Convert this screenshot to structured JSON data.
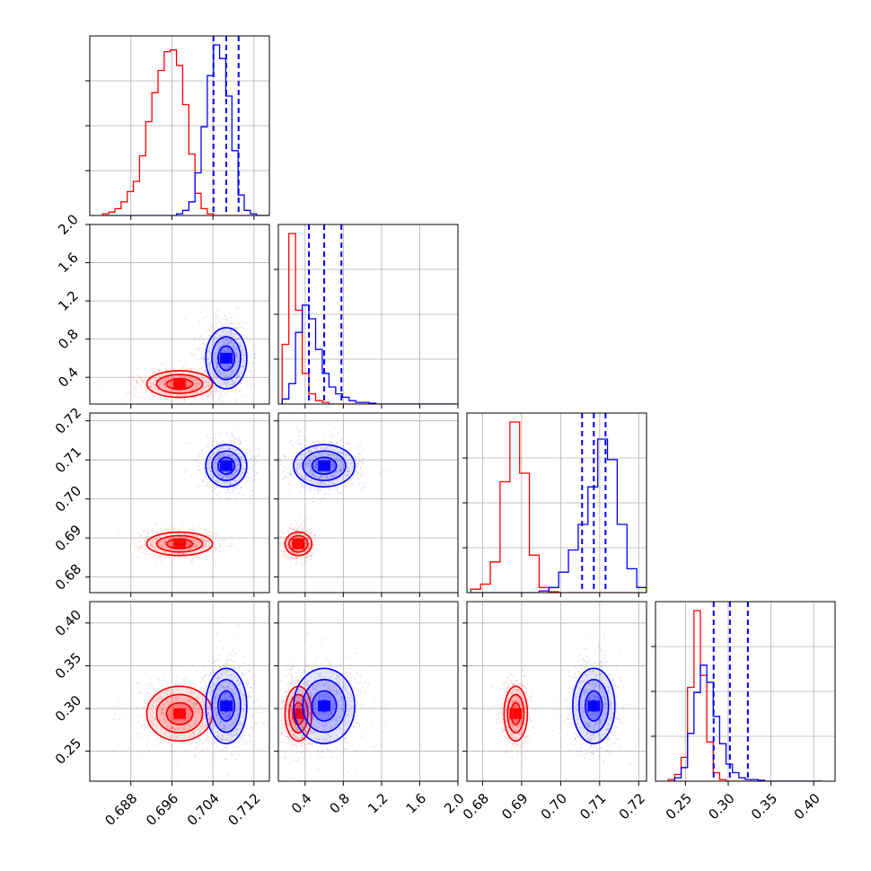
{
  "chart_data": {
    "type": "scatter",
    "layout": "corner",
    "grid": true,
    "parameters": [
      {
        "range": [
          0.68,
          0.715
        ],
        "ticks": [
          0.688,
          0.696,
          0.704,
          0.712
        ],
        "tick_labels": [
          "0.688",
          "0.696",
          "0.704",
          "0.712"
        ]
      },
      {
        "range": [
          0.12,
          2.0
        ],
        "ticks": [
          0.4,
          0.8,
          1.2,
          1.6,
          2.0
        ],
        "tick_labels": [
          "0.4",
          "0.8",
          "1.2",
          "1.6",
          "2.0"
        ]
      },
      {
        "range": [
          0.676,
          0.722
        ],
        "ticks": [
          0.68,
          0.69,
          0.7,
          0.71,
          0.72
        ],
        "tick_labels": [
          "0.68",
          "0.69",
          "0.70",
          "0.71",
          "0.72"
        ]
      },
      {
        "range": [
          0.215,
          0.425
        ],
        "ticks": [
          0.25,
          0.3,
          0.35,
          0.4
        ],
        "tick_labels": [
          "0.25",
          "0.30",
          "0.35",
          "0.40"
        ]
      }
    ],
    "series": [
      {
        "color": "#ff0000",
        "means": [
          0.6975,
          0.33,
          0.6885,
          0.294
        ],
        "sigmas": [
          0.0032,
          0.07,
          0.0015,
          0.016
        ],
        "histograms": [
          {
            "bin_start": 0.6825,
            "bin_width": 0.0012,
            "counts": [
              1,
              2,
              4,
              8,
              14,
              20,
              35,
              55,
              72,
              85,
              96,
              97,
              88,
              65,
              36,
              13,
              4,
              1,
              0,
              0,
              0,
              0,
              0,
              0,
              0,
              0,
              0,
              0
            ]
          },
          {
            "bin_start": 0.16,
            "bin_width": 0.07,
            "counts": [
              35,
              100,
              55,
              18,
              6,
              2,
              1,
              0,
              0,
              0,
              0,
              0,
              0,
              0,
              0,
              0,
              0,
              0,
              0,
              0,
              0,
              0,
              0,
              0,
              0,
              0
            ]
          },
          {
            "bin_start": 0.677,
            "bin_width": 0.0025,
            "counts": [
              2,
              5,
              18,
              65,
              100,
              70,
              22,
              3,
              0.5,
              0,
              0,
              0,
              0,
              0,
              0,
              0,
              0,
              0
            ]
          },
          {
            "bin_start": 0.23,
            "bin_width": 0.0075,
            "counts": [
              1,
              4,
              14,
              55,
              100,
              62,
              23,
              5,
              1,
              0,
              0,
              0,
              0,
              0,
              0,
              0,
              0,
              0,
              0,
              0,
              0,
              0,
              0,
              0
            ]
          }
        ]
      },
      {
        "color": "#0000ff",
        "means": [
          0.7066,
          0.6,
          0.7085,
          0.303
        ],
        "sigmas": [
          0.002,
          0.16,
          0.0027,
          0.022
        ],
        "histograms": [
          {
            "bin_start": 0.6825,
            "bin_width": 0.0012,
            "counts": [
              0,
              0,
              0,
              0,
              0,
              0,
              0,
              0,
              0,
              0,
              0,
              0,
              1,
              3,
              8,
              25,
              52,
              82,
              100,
              92,
              70,
              38,
              12,
              3,
              1,
              0,
              0,
              0
            ]
          },
          {
            "bin_start": 0.16,
            "bin_width": 0.07,
            "counts": [
              3,
              12,
              42,
              58,
              50,
              32,
              18,
              10,
              6,
              4,
              2,
              1,
              1,
              0.5,
              0,
              0,
              0,
              0,
              0,
              0,
              0,
              0,
              0,
              0,
              0,
              0
            ]
          },
          {
            "bin_start": 0.677,
            "bin_width": 0.0025,
            "counts": [
              0,
              0,
              0,
              0,
              0,
              0,
              0,
              1,
              3,
              12,
              25,
              40,
              62,
              90,
              78,
              40,
              14,
              3
            ]
          },
          {
            "bin_start": 0.23,
            "bin_width": 0.0075,
            "counts": [
              0,
              2,
              8,
              28,
              52,
              68,
              58,
              38,
              22,
              10,
              5,
              2,
              1,
              1,
              0.5,
              0,
              0,
              0,
              0,
              0,
              0,
              0,
              0,
              0
            ]
          }
        ],
        "quantiles": [
          [
            0.7041,
            0.7066,
            0.709
          ],
          [
            0.44,
            0.6,
            0.78
          ],
          [
            0.7055,
            0.7085,
            0.7115
          ],
          [
            0.283,
            0.302,
            0.323
          ]
        ]
      }
    ]
  }
}
